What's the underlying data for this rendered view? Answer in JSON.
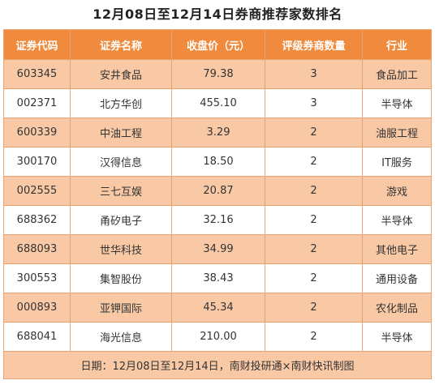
{
  "title": "12月08日至12月14日券商推荐家数排名",
  "columns": [
    "证券代码",
    "证券名称",
    "收盘价（元）",
    "评级券商数量",
    "行业"
  ],
  "rows": [
    [
      "603345",
      "安井食品",
      "79.38",
      "3",
      "食品加工"
    ],
    [
      "002371",
      "北方华创",
      "455.10",
      "3",
      "半导体"
    ],
    [
      "600339",
      "中油工程",
      "3.29",
      "2",
      "油服工程"
    ],
    [
      "300170",
      "汉得信息",
      "18.50",
      "2",
      "IT服务"
    ],
    [
      "002555",
      "三七互娱",
      "20.87",
      "2",
      "游戏"
    ],
    [
      "688362",
      "甬矽电子",
      "32.16",
      "2",
      "半导体"
    ],
    [
      "688093",
      "世华科技",
      "34.99",
      "2",
      "其他电子"
    ],
    [
      "300553",
      "集智股份",
      "38.43",
      "2",
      "通用设备"
    ],
    [
      "000893",
      "亚钾国际",
      "45.34",
      "2",
      "农化制品"
    ],
    [
      "688041",
      "海光信息",
      "210.00",
      "2",
      "半导体"
    ]
  ],
  "footer": "日期：12月08日至12月14日，南财投研通×南财快讯制图",
  "colors": {
    "header_bg": "#f08a3c",
    "stripe_bg": "#f9c9a6",
    "border": "#e9a272"
  }
}
